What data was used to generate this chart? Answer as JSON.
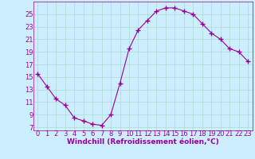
{
  "x": [
    0,
    1,
    2,
    3,
    4,
    5,
    6,
    7,
    8,
    9,
    10,
    11,
    12,
    13,
    14,
    15,
    16,
    17,
    18,
    19,
    20,
    21,
    22,
    23
  ],
  "y": [
    15.5,
    13.5,
    11.5,
    10.5,
    8.5,
    8.0,
    7.5,
    7.3,
    9.0,
    14.0,
    19.5,
    22.5,
    24.0,
    25.5,
    26.0,
    26.0,
    25.5,
    25.0,
    23.5,
    22.0,
    21.0,
    19.5,
    19.0,
    17.5
  ],
  "line_color": "#990099",
  "marker": "+",
  "marker_size": 4,
  "xlabel": "Windchill (Refroidissement éolien,°C)",
  "xlim": [
    -0.5,
    23.5
  ],
  "ylim": [
    6.5,
    27
  ],
  "yticks": [
    7,
    9,
    11,
    13,
    15,
    17,
    19,
    21,
    23,
    25
  ],
  "xticks": [
    0,
    1,
    2,
    3,
    4,
    5,
    6,
    7,
    8,
    9,
    10,
    11,
    12,
    13,
    14,
    15,
    16,
    17,
    18,
    19,
    20,
    21,
    22,
    23
  ],
  "bg_color": "#cceeff",
  "grid_color": "#aaddcc",
  "label_color": "#990099",
  "xlabel_fontsize": 6.5,
  "tick_fontsize": 6.0,
  "lw": 0.8
}
